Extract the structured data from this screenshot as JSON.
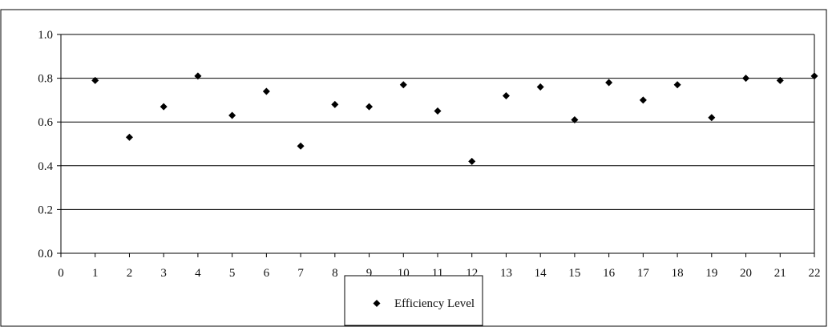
{
  "chart_data": {
    "type": "scatter",
    "title": "",
    "xlabel": "",
    "ylabel": "",
    "xlim": [
      0,
      22
    ],
    "ylim": [
      0.0,
      1.0
    ],
    "x_ticks": [
      "0",
      "1",
      "2",
      "3",
      "4",
      "5",
      "6",
      "7",
      "8",
      "9",
      "10",
      "11",
      "12",
      "13",
      "14",
      "15",
      "16",
      "17",
      "18",
      "19",
      "20",
      "21",
      "22"
    ],
    "y_ticks": [
      "0.0",
      "0.2",
      "0.4",
      "0.6",
      "0.8",
      "1.0"
    ],
    "grid": "horizontal",
    "legend_position": "bottom",
    "series": [
      {
        "name": "Efficiency Level",
        "marker": "diamond",
        "color": "#000000",
        "x": [
          1,
          2,
          3,
          4,
          5,
          6,
          7,
          8,
          9,
          10,
          11,
          12,
          13,
          14,
          15,
          16,
          17,
          18,
          19,
          20,
          21,
          22
        ],
        "y": [
          0.79,
          0.53,
          0.67,
          0.81,
          0.63,
          0.74,
          0.49,
          0.68,
          0.67,
          0.77,
          0.65,
          0.42,
          0.72,
          0.76,
          0.61,
          0.78,
          0.7,
          0.77,
          0.62,
          0.8,
          0.79,
          0.81
        ]
      }
    ]
  }
}
